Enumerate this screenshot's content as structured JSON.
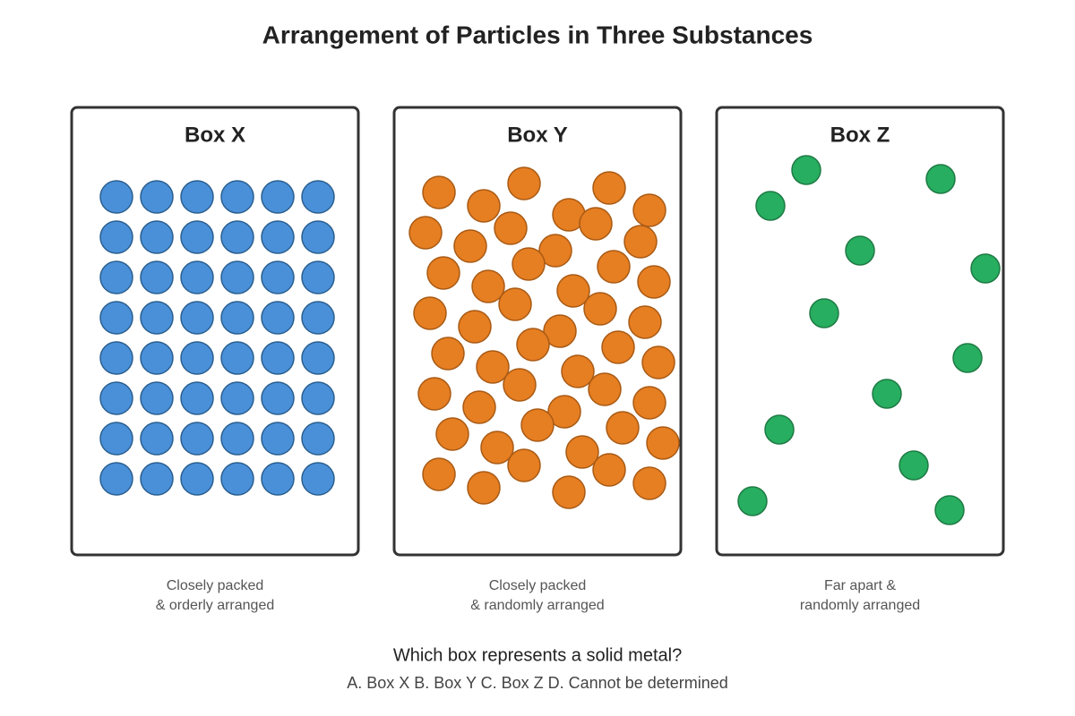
{
  "title": "Arrangement of Particles in Three Substances",
  "boxes": [
    {
      "label": "Box X",
      "caption": [
        "Closely packed",
        "& orderly arranged"
      ]
    },
    {
      "label": "Box Y",
      "caption": [
        "Closely packed",
        "& randomly arranged"
      ]
    },
    {
      "label": "Box Z",
      "caption": [
        "Far apart &",
        "randomly arranged"
      ]
    }
  ],
  "question": "Which box represents a solid metal?",
  "options": "A. Box X B. Box Y C. Box Z D. Cannot be determined"
}
